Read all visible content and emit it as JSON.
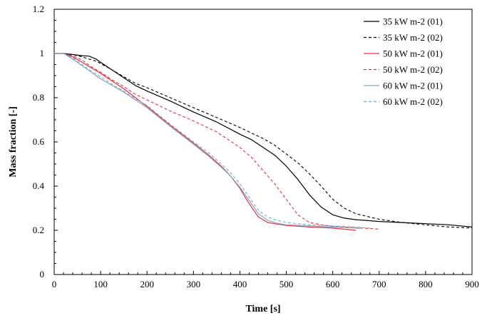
{
  "chart_data": {
    "type": "line",
    "xlabel": "Time [s]",
    "ylabel": "Mass fraction [-]",
    "xlim": [
      0,
      900
    ],
    "ylim": [
      0,
      1.2
    ],
    "x_ticks": [
      "0",
      "100",
      "200",
      "300",
      "400",
      "500",
      "600",
      "700",
      "800",
      "900"
    ],
    "y_ticks": [
      "0",
      "0.2",
      "0.4",
      "0.6",
      "0.8",
      "1",
      "1.2"
    ],
    "grid": false,
    "legend_position": "top-right",
    "series": [
      {
        "name": "35 kW m-2 (01)",
        "color": "#000000",
        "dash": "solid",
        "points": [
          [
            0,
            1.0
          ],
          [
            20,
            1.0
          ],
          [
            40,
            0.995
          ],
          [
            60,
            0.99
          ],
          [
            75,
            0.988
          ],
          [
            90,
            0.975
          ],
          [
            100,
            0.96
          ],
          [
            125,
            0.925
          ],
          [
            150,
            0.89
          ],
          [
            175,
            0.855
          ],
          [
            200,
            0.83
          ],
          [
            250,
            0.785
          ],
          [
            300,
            0.735
          ],
          [
            350,
            0.69
          ],
          [
            400,
            0.635
          ],
          [
            425,
            0.61
          ],
          [
            450,
            0.575
          ],
          [
            475,
            0.54
          ],
          [
            500,
            0.49
          ],
          [
            525,
            0.43
          ],
          [
            550,
            0.36
          ],
          [
            575,
            0.305
          ],
          [
            600,
            0.27
          ],
          [
            625,
            0.255
          ],
          [
            650,
            0.248
          ],
          [
            700,
            0.24
          ],
          [
            750,
            0.235
          ],
          [
            800,
            0.23
          ],
          [
            850,
            0.225
          ],
          [
            900,
            0.215
          ]
        ]
      },
      {
        "name": "35 kW m-2 (02)",
        "color": "#000000",
        "dash": "dashed",
        "points": [
          [
            0,
            1.0
          ],
          [
            20,
            1.0
          ],
          [
            40,
            0.995
          ],
          [
            60,
            0.985
          ],
          [
            75,
            0.975
          ],
          [
            90,
            0.965
          ],
          [
            100,
            0.955
          ],
          [
            125,
            0.925
          ],
          [
            150,
            0.895
          ],
          [
            175,
            0.865
          ],
          [
            200,
            0.845
          ],
          [
            250,
            0.8
          ],
          [
            300,
            0.755
          ],
          [
            350,
            0.71
          ],
          [
            400,
            0.665
          ],
          [
            450,
            0.615
          ],
          [
            475,
            0.585
          ],
          [
            500,
            0.545
          ],
          [
            525,
            0.505
          ],
          [
            550,
            0.455
          ],
          [
            575,
            0.4
          ],
          [
            600,
            0.34
          ],
          [
            625,
            0.3
          ],
          [
            650,
            0.275
          ],
          [
            700,
            0.25
          ],
          [
            750,
            0.235
          ],
          [
            800,
            0.225
          ],
          [
            850,
            0.215
          ],
          [
            900,
            0.21
          ]
        ]
      },
      {
        "name": "50 kW m-2 (01)",
        "color": "#e8303a",
        "dash": "solid",
        "points": [
          [
            0,
            1.0
          ],
          [
            20,
            1.0
          ],
          [
            40,
            0.985
          ],
          [
            60,
            0.96
          ],
          [
            80,
            0.935
          ],
          [
            100,
            0.91
          ],
          [
            125,
            0.875
          ],
          [
            150,
            0.84
          ],
          [
            175,
            0.8
          ],
          [
            200,
            0.76
          ],
          [
            250,
            0.675
          ],
          [
            300,
            0.595
          ],
          [
            330,
            0.545
          ],
          [
            360,
            0.49
          ],
          [
            380,
            0.445
          ],
          [
            400,
            0.39
          ],
          [
            420,
            0.32
          ],
          [
            440,
            0.26
          ],
          [
            460,
            0.235
          ],
          [
            480,
            0.228
          ],
          [
            500,
            0.222
          ],
          [
            550,
            0.215
          ],
          [
            600,
            0.21
          ],
          [
            650,
            0.2
          ]
        ]
      },
      {
        "name": "50 kW m-2 (02)",
        "color": "#e8303a",
        "dash": "dashed",
        "points": [
          [
            0,
            1.0
          ],
          [
            20,
            1.0
          ],
          [
            40,
            0.99
          ],
          [
            60,
            0.97
          ],
          [
            80,
            0.94
          ],
          [
            100,
            0.915
          ],
          [
            125,
            0.88
          ],
          [
            150,
            0.85
          ],
          [
            175,
            0.815
          ],
          [
            200,
            0.79
          ],
          [
            250,
            0.74
          ],
          [
            300,
            0.695
          ],
          [
            350,
            0.645
          ],
          [
            400,
            0.575
          ],
          [
            425,
            0.53
          ],
          [
            450,
            0.47
          ],
          [
            475,
            0.41
          ],
          [
            500,
            0.34
          ],
          [
            525,
            0.27
          ],
          [
            550,
            0.235
          ],
          [
            575,
            0.225
          ],
          [
            600,
            0.218
          ],
          [
            650,
            0.212
          ],
          [
            700,
            0.205
          ]
        ]
      },
      {
        "name": "60 kW m-2 (01)",
        "color": "#7fa6c8",
        "dash": "solid",
        "points": [
          [
            0,
            1.0
          ],
          [
            20,
            1.0
          ],
          [
            40,
            0.975
          ],
          [
            60,
            0.945
          ],
          [
            80,
            0.915
          ],
          [
            100,
            0.885
          ],
          [
            125,
            0.855
          ],
          [
            150,
            0.825
          ],
          [
            175,
            0.79
          ],
          [
            200,
            0.755
          ],
          [
            250,
            0.67
          ],
          [
            300,
            0.59
          ],
          [
            330,
            0.54
          ],
          [
            360,
            0.485
          ],
          [
            380,
            0.445
          ],
          [
            400,
            0.395
          ],
          [
            420,
            0.335
          ],
          [
            440,
            0.275
          ],
          [
            460,
            0.245
          ],
          [
            480,
            0.232
          ],
          [
            500,
            0.225
          ],
          [
            550,
            0.22
          ],
          [
            600,
            0.215
          ],
          [
            650,
            0.21
          ],
          [
            660,
            0.208
          ]
        ]
      },
      {
        "name": "60 kW m-2 (02)",
        "color": "#7fa6c8",
        "dash": "dashed",
        "points": [
          [
            0,
            1.0
          ],
          [
            20,
            1.0
          ],
          [
            40,
            0.98
          ],
          [
            60,
            0.95
          ],
          [
            80,
            0.92
          ],
          [
            100,
            0.895
          ],
          [
            125,
            0.86
          ],
          [
            150,
            0.83
          ],
          [
            175,
            0.795
          ],
          [
            200,
            0.765
          ],
          [
            250,
            0.68
          ],
          [
            300,
            0.6
          ],
          [
            330,
            0.555
          ],
          [
            360,
            0.5
          ],
          [
            380,
            0.46
          ],
          [
            400,
            0.41
          ],
          [
            420,
            0.35
          ],
          [
            440,
            0.29
          ],
          [
            460,
            0.26
          ],
          [
            480,
            0.245
          ],
          [
            500,
            0.235
          ],
          [
            550,
            0.225
          ],
          [
            600,
            0.22
          ],
          [
            650,
            0.215
          ],
          [
            680,
            0.21
          ]
        ]
      }
    ]
  }
}
